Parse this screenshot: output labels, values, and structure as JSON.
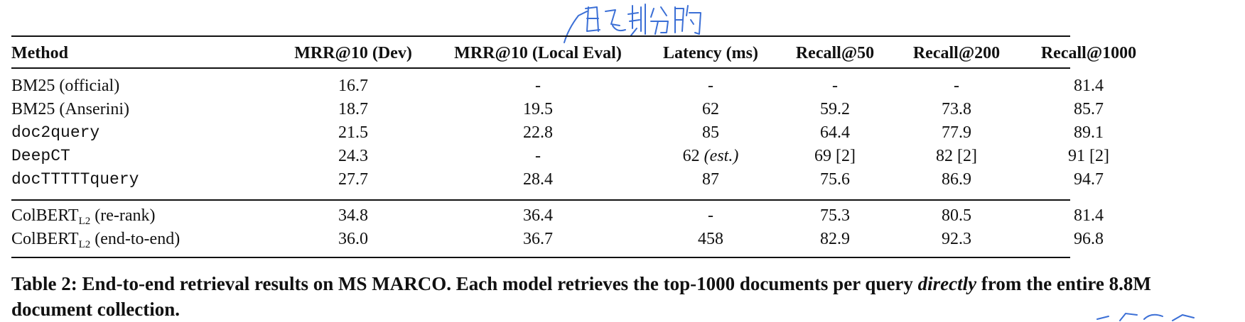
{
  "table": {
    "headers": {
      "method": "Method",
      "mrr_dev": "MRR@10 (Dev)",
      "mrr_local": "MRR@10 (Local Eval)",
      "latency": "Latency (ms)",
      "r50": "Recall@50",
      "r200": "Recall@200",
      "r1000": "Recall@1000"
    },
    "rows": [
      {
        "method": "BM25 (official)",
        "mrr_dev": "16.7",
        "mrr_local": "-",
        "latency": "-",
        "r50": "-",
        "r200": "-",
        "r1000": "81.4"
      },
      {
        "method": "BM25 (Anserini)",
        "mrr_dev": "18.7",
        "mrr_local": "19.5",
        "latency": "62",
        "r50": "59.2",
        "r200": "73.8",
        "r1000": "85.7"
      },
      {
        "method": "doc2query",
        "mrr_dev": "21.5",
        "mrr_local": "22.8",
        "latency": "85",
        "r50": "64.4",
        "r200": "77.9",
        "r1000": "89.1"
      },
      {
        "method": "DeepCT",
        "mrr_dev": "24.3",
        "mrr_local": "-",
        "latency": "62",
        "latency_note": "(est.)",
        "r50": "69 [2]",
        "r200": "82 [2]",
        "r1000": "91 [2]"
      },
      {
        "method": "docTTTTTquery",
        "mrr_dev": "27.7",
        "mrr_local": "28.4",
        "latency": "87",
        "r50": "75.6",
        "r200": "86.9",
        "r1000": "94.7"
      },
      {
        "method_base": "ColBERT",
        "method_sub": "L2",
        "method_suffix": " (re-rank)",
        "mrr_dev": "34.8",
        "mrr_local": "36.4",
        "latency": "-",
        "r50": "75.3",
        "r200": "80.5",
        "r1000": "81.4"
      },
      {
        "method_base": "ColBERT",
        "method_sub": "L2",
        "method_suffix": " (end-to-end)",
        "mrr_dev": "36.0",
        "mrr_local": "36.7",
        "latency": "458",
        "r50": "82.9",
        "r200": "92.3",
        "r1000": "96.8"
      }
    ]
  },
  "caption": {
    "part1": "Table 2: End-to-end retrieval results on MS MARCO. Each model retrieves the top-1000 documents per query ",
    "emph": "directly",
    "part2": " from the entire 8.8M document collection."
  },
  "annotation": {
    "handwritten_note": "自己划分的",
    "color": "#3b6fd6"
  }
}
